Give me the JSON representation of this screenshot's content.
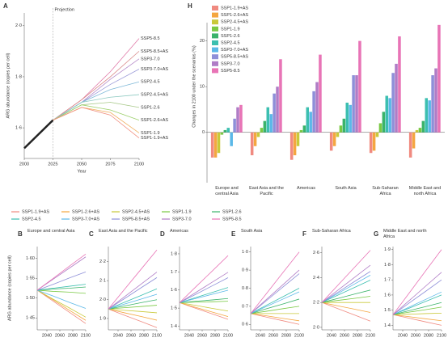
{
  "chart_data": [
    {
      "type": "line",
      "label": "A",
      "y_label": "ARG abundance (copies per cell)",
      "x_label": "Year",
      "annotation": "Projection",
      "projection_start": 2025,
      "x": [
        2000,
        2025,
        2050,
        2075,
        2100
      ],
      "xlim": [
        2000,
        2100
      ],
      "xticks": [
        2000,
        2025,
        2050,
        2075,
        2100
      ],
      "ylim": [
        1.48,
        2.05
      ],
      "yticks": [
        {
          "value": 1.6,
          "label": "1·6"
        },
        {
          "value": 1.8,
          "label": "1·8"
        },
        {
          "value": 2.0,
          "label": "2·0"
        }
      ],
      "series": [
        {
          "color": "#222222",
          "values": [
            1.52,
            1.63,
            null,
            null,
            null
          ]
        },
        {
          "name": "SSP5-8.5",
          "color": "#e07aa8",
          "values": [
            null,
            1.63,
            1.71,
            1.82,
            1.95
          ]
        },
        {
          "name": "SSP5-8.5+AS",
          "color": "#d98a8a",
          "values": [
            null,
            1.63,
            1.71,
            1.8,
            1.9
          ]
        },
        {
          "name": "SSP3-7.0",
          "color": "#b58ac9",
          "values": [
            null,
            1.63,
            1.7,
            1.79,
            1.87
          ]
        },
        {
          "name": "SSP3-7.0+AS",
          "color": "#9a9ad8",
          "values": [
            null,
            1.63,
            1.7,
            1.77,
            1.83
          ]
        },
        {
          "name": "SSP2-4.5",
          "color": "#7fb9d8",
          "values": [
            null,
            1.63,
            1.7,
            1.75,
            1.78
          ]
        },
        {
          "name": "SSP2-4.5+AS",
          "color": "#8cc9c0",
          "values": [
            null,
            1.63,
            1.7,
            1.72,
            1.73
          ]
        },
        {
          "name": "SSP1-2.6",
          "color": "#a9c98a",
          "values": [
            null,
            1.63,
            1.69,
            1.7,
            1.68
          ]
        },
        {
          "name": "SSP1-2.6+AS",
          "color": "#9ccf6a",
          "values": [
            null,
            1.63,
            1.69,
            1.67,
            1.63
          ]
        },
        {
          "name": "SSP1-1.9",
          "color": "#f0b060",
          "values": [
            null,
            1.63,
            1.68,
            1.66,
            1.58
          ]
        },
        {
          "name": "SSP1-1.9+AS",
          "color": "#f09080",
          "values": [
            null,
            1.63,
            1.68,
            1.65,
            1.56
          ]
        }
      ]
    },
    {
      "type": "bar",
      "label": "H",
      "y_label": "Changes in 2100 under the scenarios (%)",
      "categories": [
        "Europe and central Asia",
        "East Asia and the Pacific",
        "Americas",
        "South Asia",
        "Sub-Saharan Africa",
        "Middle East and north Africa"
      ],
      "ylim": [
        -11,
        24
      ],
      "yticks": [
        0,
        10,
        20
      ],
      "series": [
        {
          "name": "SSP1-1.9+AS",
          "color": "#f08a80",
          "values": [
            -5.5,
            -5,
            -6,
            -4,
            -4.5,
            -5.5
          ]
        },
        {
          "name": "SSP1-2.6+AS",
          "color": "#f4a640",
          "values": [
            -5.5,
            -3,
            -5,
            -3,
            -4,
            -3.5
          ]
        },
        {
          "name": "SSP2-4.5+AS",
          "color": "#c9c93a",
          "values": [
            -4.5,
            -1,
            -3,
            -1,
            -1,
            0.5
          ]
        },
        {
          "name": "SSP1-1.9",
          "color": "#7ac943",
          "values": [
            -0.5,
            1,
            0.5,
            1.5,
            2,
            1
          ]
        },
        {
          "name": "SSP1-2.6",
          "color": "#3bb36a",
          "values": [
            0.5,
            2.5,
            1.5,
            3,
            4.5,
            2.5
          ]
        },
        {
          "name": "SSP2-4.5",
          "color": "#3cbfb0",
          "values": [
            1,
            5.5,
            5.5,
            6.5,
            8,
            7.5
          ]
        },
        {
          "name": "SSP3-7.0+AS",
          "color": "#5bb8e8",
          "values": [
            -3,
            4,
            4.5,
            6,
            7.5,
            7
          ]
        },
        {
          "name": "SSP5-8.5+AS",
          "color": "#8e8fd8",
          "values": [
            3,
            8.5,
            9,
            12.5,
            13,
            12.5
          ]
        },
        {
          "name": "SSP3-7.0",
          "color": "#b07cc6",
          "values": [
            5.5,
            10,
            11,
            12.5,
            15,
            14
          ]
        },
        {
          "name": "SSP5-8.5",
          "color": "#e874b6",
          "values": [
            6,
            16,
            17,
            20,
            21,
            23.5
          ]
        }
      ]
    },
    {
      "type": "line",
      "label": "B",
      "title": "Europe and central Asia",
      "y_label": "ARG abundance (copies per cell)",
      "x": [
        2025,
        2050,
        2075,
        2100
      ],
      "xlim": [
        2025,
        2100
      ],
      "xticks": [
        2040,
        2060,
        2080,
        2100
      ],
      "ylim": [
        1.42,
        1.63
      ],
      "yticks": [
        {
          "value": 1.45,
          "label": "1·45"
        },
        {
          "value": 1.5,
          "label": "1·50"
        },
        {
          "value": 1.55,
          "label": "1·55"
        },
        {
          "value": 1.6,
          "label": "1·60"
        }
      ],
      "series": [
        {
          "values": [
            1.52,
            1.492,
            1.464,
            1.436
          ]
        },
        {
          "values": [
            1.52,
            1.495,
            1.469,
            1.444
          ]
        },
        {
          "values": [
            1.52,
            1.497,
            1.475,
            1.452
          ]
        },
        {
          "values": [
            1.52,
            1.517,
            1.515,
            1.512
          ]
        },
        {
          "values": [
            1.52,
            1.523,
            1.525,
            1.528
          ]
        },
        {
          "values": [
            1.52,
            1.525,
            1.53,
            1.535
          ]
        },
        {
          "values": [
            1.52,
            1.505,
            1.489,
            1.474
          ]
        },
        {
          "values": [
            1.52,
            1.535,
            1.551,
            1.566
          ]
        },
        {
          "values": [
            1.52,
            1.548,
            1.576,
            1.604
          ]
        },
        {
          "values": [
            1.52,
            1.55,
            1.581,
            1.611
          ]
        }
      ]
    },
    {
      "type": "line",
      "label": "C",
      "title": "East Asia and the Pacific",
      "x": [
        2025,
        2050,
        2075,
        2100
      ],
      "xlim": [
        2025,
        2100
      ],
      "xticks": [
        2040,
        2060,
        2080,
        2100
      ],
      "ylim": [
        1.84,
        2.28
      ],
      "yticks": [
        {
          "value": 1.9,
          "label": "1·9"
        },
        {
          "value": 2.0,
          "label": "2·0"
        },
        {
          "value": 2.1,
          "label": "2·1"
        },
        {
          "value": 2.2,
          "label": "2·2"
        }
      ],
      "series": [
        {
          "values": [
            1.95,
            1.917,
            1.885,
            1.852
          ]
        },
        {
          "values": [
            1.95,
            1.93,
            1.911,
            1.891
          ]
        },
        {
          "values": [
            1.95,
            1.943,
            1.937,
            1.93
          ]
        },
        {
          "values": [
            1.95,
            1.957,
            1.963,
            1.97
          ]
        },
        {
          "values": [
            1.95,
            1.966,
            1.983,
            1.999
          ]
        },
        {
          "values": [
            1.95,
            1.986,
            2.021,
            2.057
          ]
        },
        {
          "values": [
            1.95,
            1.976,
            2.002,
            2.028
          ]
        },
        {
          "values": [
            1.95,
            2.005,
            2.061,
            2.116
          ]
        },
        {
          "values": [
            1.95,
            2.015,
            2.08,
            2.145
          ]
        },
        {
          "values": [
            1.95,
            2.054,
            2.158,
            2.262
          ]
        }
      ]
    },
    {
      "type": "line",
      "label": "D",
      "title": "Americas",
      "x": [
        2025,
        2050,
        2075,
        2100
      ],
      "xlim": [
        2025,
        2100
      ],
      "xticks": [
        2040,
        2060,
        2080,
        2100
      ],
      "ylim": [
        1.38,
        1.84
      ],
      "yticks": [
        {
          "value": 1.4,
          "label": "1·4"
        },
        {
          "value": 1.5,
          "label": "1·5"
        },
        {
          "value": 1.6,
          "label": "1·6"
        },
        {
          "value": 1.7,
          "label": "1·7"
        },
        {
          "value": 1.8,
          "label": "1·8"
        }
      ],
      "series": [
        {
          "values": [
            1.53,
            1.499,
            1.469,
            1.438
          ]
        },
        {
          "values": [
            1.53,
            1.504,
            1.479,
            1.453
          ]
        },
        {
          "values": [
            1.53,
            1.515,
            1.499,
            1.484
          ]
        },
        {
          "values": [
            1.53,
            1.533,
            1.535,
            1.538
          ]
        },
        {
          "values": [
            1.53,
            1.538,
            1.545,
            1.553
          ]
        },
        {
          "values": [
            1.53,
            1.558,
            1.586,
            1.614
          ]
        },
        {
          "values": [
            1.53,
            1.553,
            1.576,
            1.599
          ]
        },
        {
          "values": [
            1.53,
            1.576,
            1.622,
            1.668
          ]
        },
        {
          "values": [
            1.53,
            1.586,
            1.642,
            1.698
          ]
        },
        {
          "values": [
            1.53,
            1.617,
            1.703,
            1.79
          ]
        }
      ]
    },
    {
      "type": "line",
      "label": "E",
      "title": "South Asia",
      "x": [
        2025,
        2050,
        2075,
        2100
      ],
      "xlim": [
        2025,
        2100
      ],
      "xticks": [
        2040,
        2060,
        2080,
        2100
      ],
      "ylim": [
        0.57,
        1.03
      ],
      "yticks": [
        {
          "value": 0.6,
          "label": "0·6"
        },
        {
          "value": 0.7,
          "label": "0·7"
        },
        {
          "value": 0.8,
          "label": "0·8"
        },
        {
          "value": 0.9,
          "label": "0·9"
        },
        {
          "value": 1.0,
          "label": "1·0"
        }
      ],
      "series": [
        {
          "values": [
            0.66,
            0.64,
            0.62,
            0.6
          ]
        },
        {
          "values": [
            0.66,
            0.647,
            0.633,
            0.62
          ]
        },
        {
          "values": [
            0.66,
            0.66,
            0.66,
            0.66
          ]
        },
        {
          "values": [
            0.66,
            0.673,
            0.687,
            0.7
          ]
        },
        {
          "values": [
            0.66,
            0.687,
            0.713,
            0.74
          ]
        },
        {
          "values": [
            0.66,
            0.707,
            0.753,
            0.8
          ]
        },
        {
          "values": [
            0.66,
            0.7,
            0.74,
            0.78
          ]
        },
        {
          "values": [
            0.66,
            0.733,
            0.807,
            0.88
          ]
        },
        {
          "values": [
            0.66,
            0.74,
            0.82,
            0.9
          ]
        },
        {
          "values": [
            0.66,
            0.773,
            0.887,
            1.0
          ]
        }
      ]
    },
    {
      "type": "line",
      "label": "F",
      "title": "Sub-Saharan Africa",
      "x": [
        2025,
        2050,
        2075,
        2100
      ],
      "xlim": [
        2025,
        2100
      ],
      "xticks": [
        2040,
        2060,
        2080,
        2100
      ],
      "ylim": [
        1.98,
        2.65
      ],
      "yticks": [
        {
          "value": 2.0,
          "label": "2·0"
        },
        {
          "value": 2.2,
          "label": "2·2"
        },
        {
          "value": 2.4,
          "label": "2·4"
        },
        {
          "value": 2.6,
          "label": "2·6"
        }
      ],
      "series": [
        {
          "values": [
            2.2,
            2.15,
            2.1,
            2.05
          ]
        },
        {
          "values": [
            2.2,
            2.173,
            2.147,
            2.12
          ]
        },
        {
          "values": [
            2.2,
            2.2,
            2.2,
            2.2
          ]
        },
        {
          "values": [
            2.2,
            2.217,
            2.233,
            2.25
          ]
        },
        {
          "values": [
            2.2,
            2.233,
            2.267,
            2.3
          ]
        },
        {
          "values": [
            2.2,
            2.26,
            2.32,
            2.38
          ]
        },
        {
          "values": [
            2.2,
            2.273,
            2.347,
            2.42
          ]
        },
        {
          "values": [
            2.2,
            2.283,
            2.367,
            2.45
          ]
        },
        {
          "values": [
            2.2,
            2.3,
            2.4,
            2.5
          ]
        },
        {
          "values": [
            2.2,
            2.34,
            2.48,
            2.62
          ]
        }
      ]
    },
    {
      "type": "line",
      "label": "G",
      "title": "Middle East and north Africa",
      "x": [
        2025,
        2050,
        2075,
        2100
      ],
      "xlim": [
        2025,
        2100
      ],
      "xticks": [
        2040,
        2060,
        2080,
        2100
      ],
      "ylim": [
        1.37,
        1.92
      ],
      "yticks": [
        {
          "value": 1.4,
          "label": "1·4"
        },
        {
          "value": 1.5,
          "label": "1·5"
        },
        {
          "value": 1.6,
          "label": "1·6"
        },
        {
          "value": 1.7,
          "label": "1·7"
        },
        {
          "value": 1.8,
          "label": "1·8"
        },
        {
          "value": 1.9,
          "label": "1·9"
        }
      ],
      "series": [
        {
          "values": [
            1.47,
            1.447,
            1.423,
            1.4
          ]
        },
        {
          "values": [
            1.47,
            1.457,
            1.443,
            1.43
          ]
        },
        {
          "values": [
            1.47,
            1.473,
            1.477,
            1.48
          ]
        },
        {
          "values": [
            1.47,
            1.487,
            1.503,
            1.52
          ]
        },
        {
          "values": [
            1.47,
            1.497,
            1.523,
            1.55
          ]
        },
        {
          "values": [
            1.47,
            1.513,
            1.557,
            1.6
          ]
        },
        {
          "values": [
            1.47,
            1.52,
            1.57,
            1.62
          ]
        },
        {
          "values": [
            1.47,
            1.547,
            1.623,
            1.7
          ]
        },
        {
          "values": [
            1.47,
            1.563,
            1.657,
            1.75
          ]
        },
        {
          "values": [
            1.47,
            1.613,
            1.757,
            1.9
          ]
        }
      ]
    }
  ]
}
